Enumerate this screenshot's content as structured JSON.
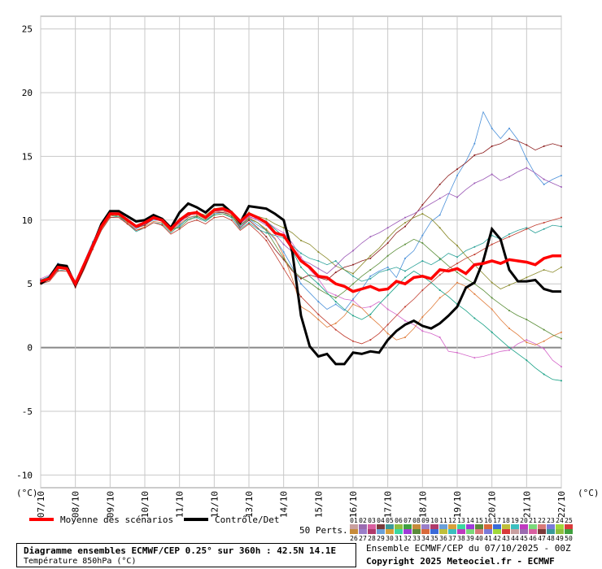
{
  "chart_data": {
    "type": "line",
    "unit_label": "(°C)",
    "ylim": [
      -11,
      26
    ],
    "yticks": [
      -10,
      -5,
      0,
      5,
      10,
      15,
      20,
      25
    ],
    "xlim": [
      0,
      360
    ],
    "xticks": [
      {
        "label": "07/10",
        "h": 0
      },
      {
        "label": "08/10",
        "h": 24
      },
      {
        "label": "09/10",
        "h": 48
      },
      {
        "label": "10/10",
        "h": 72
      },
      {
        "label": "11/10",
        "h": 96
      },
      {
        "label": "12/10",
        "h": 120
      },
      {
        "label": "13/10",
        "h": 144
      },
      {
        "label": "14/10",
        "h": 168
      },
      {
        "label": "15/10",
        "h": 192
      },
      {
        "label": "16/10",
        "h": 216
      },
      {
        "label": "17/10",
        "h": 240
      },
      {
        "label": "18/10",
        "h": 264
      },
      {
        "label": "19/10",
        "h": 288
      },
      {
        "label": "20/10",
        "h": 312
      },
      {
        "label": "21/10",
        "h": 336
      },
      {
        "label": "22/10",
        "h": 360
      }
    ],
    "mean": {
      "name": "Moyenne des scénarios",
      "color": "#ff0000",
      "x": [
        0,
        6,
        12,
        18,
        24,
        30,
        36,
        42,
        48,
        54,
        60,
        66,
        72,
        78,
        84,
        90,
        96,
        102,
        108,
        114,
        120,
        126,
        132,
        138,
        144,
        150,
        156,
        162,
        168,
        174,
        180,
        186,
        192,
        198,
        204,
        210,
        216,
        222,
        228,
        234,
        240,
        246,
        252,
        258,
        264,
        270,
        276,
        282,
        288,
        294,
        300,
        306,
        312,
        318,
        324,
        330,
        336,
        342,
        348,
        354,
        360
      ],
      "y": [
        5.2,
        5.4,
        6.3,
        6.2,
        5.0,
        6.5,
        8.0,
        9.5,
        10.5,
        10.5,
        10.0,
        9.5,
        9.8,
        10.2,
        10.0,
        9.3,
        10.0,
        10.5,
        10.6,
        10.2,
        10.8,
        10.9,
        10.6,
        9.9,
        10.5,
        10.2,
        9.8,
        9.0,
        8.8,
        7.8,
        6.8,
        6.3,
        5.6,
        5.5,
        5.0,
        4.8,
        4.4,
        4.6,
        4.8,
        4.5,
        4.6,
        5.2,
        5.0,
        5.5,
        5.6,
        5.4,
        6.1,
        6.0,
        6.2,
        5.8,
        6.5,
        6.6,
        6.8,
        6.6,
        6.9,
        6.8,
        6.7,
        6.5,
        7.0,
        7.2,
        7.2
      ]
    },
    "control": {
      "name": "Contrôle/Det",
      "color": "#000000",
      "x": [
        0,
        6,
        12,
        18,
        24,
        30,
        36,
        42,
        48,
        54,
        60,
        66,
        72,
        78,
        84,
        90,
        96,
        102,
        108,
        114,
        120,
        126,
        132,
        138,
        144,
        150,
        156,
        162,
        168,
        174,
        180,
        186,
        192,
        198,
        204,
        210,
        216,
        222,
        228,
        234,
        240,
        246,
        252,
        258,
        264,
        270,
        276,
        282,
        288,
        294,
        300,
        306,
        312,
        318,
        324,
        330,
        336,
        342,
        348,
        354,
        360
      ],
      "y": [
        5.0,
        5.5,
        6.5,
        6.4,
        4.9,
        6.4,
        8.0,
        9.7,
        10.7,
        10.7,
        10.3,
        9.9,
        10.0,
        10.4,
        10.1,
        9.4,
        10.6,
        11.3,
        11.0,
        10.6,
        11.2,
        11.2,
        10.6,
        9.8,
        11.1,
        11.0,
        10.9,
        10.5,
        10.0,
        7.5,
        2.5,
        0.1,
        -0.7,
        -0.5,
        -1.3,
        -1.3,
        -0.4,
        -0.5,
        -0.3,
        -0.4,
        0.6,
        1.3,
        1.8,
        2.1,
        1.7,
        1.5,
        1.9,
        2.5,
        3.2,
        4.7,
        5.1,
        6.8,
        9.3,
        8.5,
        6.1,
        5.2,
        5.2,
        5.3,
        4.6,
        4.4,
        4.4
      ]
    },
    "members": [
      {
        "color": "#4a90d9",
        "y": [
          5.3,
          5.6,
          6.6,
          6.3,
          5.2,
          6.7,
          8.3,
          9.6,
          10.4,
          10.3,
          9.8,
          9.3,
          9.7,
          10.0,
          10.0,
          9.2,
          9.5,
          10.2,
          10.3,
          10.0,
          10.5,
          10.6,
          10.4,
          9.5,
          10.1,
          9.6,
          9.2,
          8.5,
          7.5,
          6.3,
          5.0,
          4.3,
          3.6,
          3.0,
          3.4,
          2.9,
          3.8,
          4.6,
          5.6,
          6.0,
          6.3,
          5.5,
          7.0,
          7.6,
          8.8,
          9.9,
          10.4,
          12.0,
          13.5,
          14.6,
          16.0,
          18.5,
          17.2,
          16.4,
          17.2,
          16.3,
          14.8,
          13.6,
          12.8,
          13.2,
          13.5
        ]
      },
      {
        "color": "#8b1a1a",
        "y": [
          5.1,
          5.4,
          6.2,
          6.2,
          4.9,
          6.3,
          7.9,
          9.4,
          10.6,
          10.4,
          9.9,
          9.4,
          9.6,
          10.1,
          9.9,
          9.1,
          9.9,
          10.3,
          10.7,
          10.1,
          10.6,
          10.6,
          10.4,
          9.4,
          10.0,
          9.4,
          8.7,
          7.7,
          6.9,
          6.0,
          5.4,
          5.7,
          5.5,
          5.3,
          5.9,
          6.3,
          6.5,
          6.8,
          7.0,
          7.6,
          8.2,
          9.0,
          9.5,
          10.3,
          11.2,
          12.0,
          12.8,
          13.5,
          14.0,
          14.5,
          15.1,
          15.3,
          15.8,
          16.0,
          16.4,
          16.2,
          15.9,
          15.5,
          15.8,
          16.0,
          15.8
        ]
      },
      {
        "color": "#d466c9",
        "y": [
          5.4,
          5.7,
          6.5,
          6.4,
          5.1,
          6.6,
          8.2,
          9.8,
          10.4,
          10.5,
          10.1,
          9.6,
          9.9,
          10.2,
          10.1,
          9.4,
          9.8,
          10.4,
          10.5,
          10.3,
          10.7,
          10.7,
          10.6,
          9.8,
          10.2,
          10.1,
          9.9,
          9.4,
          9.0,
          8.2,
          7.1,
          6.1,
          5.4,
          4.4,
          4.1,
          3.8,
          3.7,
          3.1,
          3.2,
          3.6,
          3.0,
          2.6,
          2.1,
          1.8,
          1.3,
          1.1,
          0.8,
          -0.3,
          -0.4,
          -0.6,
          -0.8,
          -0.7,
          -0.5,
          -0.3,
          -0.2,
          0.3,
          0.6,
          0.3,
          -0.1,
          -1.0,
          -1.5
        ]
      },
      {
        "color": "#2aa198",
        "y": [
          5.0,
          5.3,
          6.1,
          6.0,
          4.8,
          6.2,
          7.8,
          9.2,
          10.2,
          10.3,
          9.7,
          9.1,
          9.4,
          9.8,
          9.7,
          9.0,
          9.6,
          10.1,
          10.2,
          9.9,
          10.4,
          10.5,
          10.2,
          9.3,
          9.8,
          9.3,
          9.0,
          8.8,
          8.6,
          8.0,
          7.4,
          7.0,
          6.8,
          6.5,
          6.8,
          6.1,
          5.6,
          5.2,
          5.4,
          5.9,
          6.1,
          6.3,
          6.0,
          6.4,
          6.8,
          6.5,
          6.9,
          7.4,
          7.1,
          7.6,
          7.9,
          8.2,
          8.8,
          8.5,
          8.9,
          9.2,
          9.4,
          9.0,
          9.3,
          9.6,
          9.5
        ]
      },
      {
        "color": "#8a8a2a",
        "y": [
          5.2,
          5.5,
          6.4,
          6.3,
          5.0,
          6.5,
          8.0,
          9.5,
          10.5,
          10.6,
          10.0,
          9.4,
          9.8,
          10.2,
          10.0,
          9.3,
          10.1,
          10.6,
          10.6,
          10.4,
          10.9,
          11.0,
          10.7,
          9.9,
          10.6,
          10.3,
          10.1,
          9.7,
          9.4,
          9.0,
          8.4,
          8.1,
          7.5,
          7.0,
          6.4,
          6.1,
          5.8,
          6.5,
          7.2,
          7.8,
          8.6,
          9.3,
          9.8,
          10.2,
          10.5,
          10.1,
          9.4,
          8.6,
          8.0,
          7.2,
          6.5,
          5.8,
          5.1,
          4.6,
          4.9,
          5.2,
          5.5,
          5.8,
          6.1,
          5.9,
          6.3
        ]
      },
      {
        "color": "#e07b39",
        "y": [
          5.1,
          5.3,
          6.2,
          6.1,
          4.9,
          6.3,
          7.9,
          9.3,
          10.3,
          10.4,
          9.8,
          9.2,
          9.5,
          9.9,
          9.8,
          9.1,
          9.7,
          10.2,
          10.4,
          10.1,
          10.6,
          10.7,
          10.4,
          9.6,
          10.2,
          9.8,
          9.3,
          8.6,
          7.2,
          5.4,
          3.2,
          2.8,
          2.2,
          1.6,
          1.9,
          2.5,
          3.4,
          3.1,
          2.4,
          1.8,
          1.1,
          0.6,
          0.8,
          1.5,
          2.4,
          3.1,
          3.9,
          4.4,
          5.1,
          4.8,
          4.2,
          3.6,
          3.0,
          2.2,
          1.5,
          1.0,
          0.4,
          0.2,
          0.5,
          0.9,
          1.2
        ]
      },
      {
        "color": "#5c8f3a",
        "y": [
          5.3,
          5.5,
          6.4,
          6.2,
          5.1,
          6.6,
          8.1,
          9.6,
          10.4,
          10.3,
          9.9,
          9.5,
          9.8,
          10.1,
          10.0,
          9.3,
          9.4,
          10.0,
          10.3,
          10.0,
          10.4,
          10.5,
          10.3,
          9.6,
          10.1,
          9.8,
          9.2,
          8.1,
          7.0,
          6.1,
          5.5,
          5.1,
          4.6,
          4.2,
          3.9,
          4.4,
          5.0,
          5.6,
          6.1,
          6.6,
          7.2,
          7.7,
          8.1,
          8.5,
          8.2,
          7.6,
          7.0,
          6.4,
          5.9,
          5.4,
          5.0,
          4.5,
          3.9,
          3.4,
          2.9,
          2.5,
          2.2,
          1.8,
          1.4,
          1.0,
          0.7
        ]
      },
      {
        "color": "#9b59b6",
        "y": [
          5.2,
          5.4,
          6.3,
          6.3,
          5.0,
          6.4,
          8.0,
          9.5,
          10.5,
          10.5,
          10.0,
          9.5,
          9.7,
          10.1,
          9.9,
          9.2,
          9.8,
          10.4,
          10.5,
          10.2,
          10.7,
          10.8,
          10.5,
          9.7,
          10.3,
          10.0,
          9.6,
          8.9,
          8.1,
          7.5,
          6.9,
          6.6,
          6.2,
          5.8,
          6.4,
          7.1,
          7.6,
          8.2,
          8.7,
          9.0,
          9.4,
          9.8,
          10.2,
          10.5,
          10.9,
          11.3,
          11.7,
          12.1,
          11.8,
          12.4,
          12.9,
          13.2,
          13.6,
          13.1,
          13.4,
          13.8,
          14.1,
          13.7,
          13.2,
          12.9,
          12.6
        ]
      },
      {
        "color": "#c0392b",
        "y": [
          5.0,
          5.2,
          6.0,
          6.0,
          4.7,
          6.1,
          7.7,
          9.2,
          10.2,
          10.2,
          9.7,
          9.2,
          9.4,
          9.8,
          9.6,
          8.9,
          9.3,
          9.8,
          10.0,
          9.7,
          10.2,
          10.3,
          10.0,
          9.2,
          9.7,
          9.1,
          8.4,
          7.3,
          6.2,
          5.1,
          4.0,
          3.3,
          2.6,
          2.0,
          1.4,
          0.9,
          0.5,
          0.3,
          0.6,
          1.1,
          1.8,
          2.5,
          3.2,
          3.8,
          4.5,
          5.1,
          5.7,
          6.2,
          6.6,
          7.0,
          7.3,
          7.7,
          8.1,
          8.4,
          8.7,
          9.0,
          9.3,
          9.6,
          9.8,
          10.0,
          10.2
        ]
      },
      {
        "color": "#16a085",
        "y": [
          5.3,
          5.6,
          6.5,
          6.4,
          5.1,
          6.6,
          8.2,
          9.7,
          10.5,
          10.4,
          10.0,
          9.5,
          9.8,
          10.2,
          10.1,
          9.3,
          9.9,
          10.5,
          10.6,
          10.3,
          10.8,
          10.8,
          10.6,
          9.8,
          10.4,
          10.2,
          9.9,
          9.3,
          8.7,
          7.6,
          6.3,
          5.6,
          5.0,
          4.3,
          3.6,
          3.0,
          2.5,
          2.2,
          2.6,
          3.4,
          4.1,
          4.8,
          5.5,
          6.0,
          5.6,
          5.1,
          4.5,
          4.0,
          3.4,
          2.9,
          2.3,
          1.8,
          1.2,
          0.6,
          0.0,
          -0.5,
          -1.0,
          -1.6,
          -2.1,
          -2.5,
          -2.6
        ]
      }
    ]
  },
  "legend": {
    "mean_label": "Moyenne des scénarios",
    "control_label": "Contrôle/Det",
    "perts_label": "50 Perts.",
    "members_top": [
      "01",
      "02",
      "03",
      "04",
      "05",
      "06",
      "07",
      "08",
      "09",
      "10",
      "11",
      "12",
      "13",
      "14",
      "15",
      "16",
      "17",
      "18",
      "19",
      "20",
      "21",
      "22",
      "23",
      "24",
      "25"
    ],
    "members_bottom": [
      "26",
      "27",
      "28",
      "29",
      "30",
      "31",
      "32",
      "33",
      "34",
      "35",
      "36",
      "37",
      "38",
      "39",
      "40",
      "41",
      "42",
      "43",
      "44",
      "45",
      "46",
      "47",
      "48",
      "49",
      "50"
    ],
    "swatch_colors": [
      "#c9a0a0",
      "#9b6bb0",
      "#d95fa0",
      "#7a3a3a",
      "#3a9a9a",
      "#8fbf3f",
      "#3fa03f",
      "#c78b3a",
      "#9a7fc9",
      "#b03a6a",
      "#6aa0d9",
      "#d9a03a",
      "#3ad9a0",
      "#a03ad9",
      "#5a8a3a",
      "#d96a3a",
      "#3a6ad9",
      "#bfbf3a",
      "#3abfbf",
      "#bf3abf",
      "#7ad97a",
      "#d97a7a",
      "#7a7ad9",
      "#a0d93a",
      "#d93a3a"
    ]
  },
  "footer": {
    "title": "Diagramme ensembles ECMWF/CEP 0.25° sur 360h : 42.5N 14.1E",
    "subtitle": "Température 850hPa (°C)",
    "run_info": "Ensemble ECMWF/CEP du 07/10/2025 - 00Z",
    "copyright": "Copyright 2025 Meteociel.fr - ECMWF"
  }
}
